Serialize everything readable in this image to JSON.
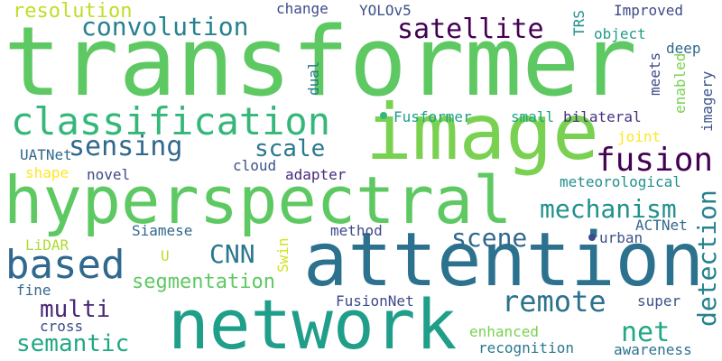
{
  "cloud": {
    "background": "#ffffff",
    "words": {
      "transformer": {
        "text": "transformer",
        "color": "#5ec962"
      },
      "image": {
        "text": "image",
        "color": "#7ad151"
      },
      "hyperspectral": {
        "text": "hyperspectral",
        "color": "#5ec962"
      },
      "attention": {
        "text": "attention",
        "color": "#2c728e"
      },
      "network": {
        "text": "network",
        "color": "#1f9e89"
      },
      "classification": {
        "text": "classification",
        "color": "#35b779"
      },
      "sensing": {
        "text": "sensing",
        "color": "#31688e"
      },
      "fusion": {
        "text": "fusion",
        "color": "#440154"
      },
      "based": {
        "text": "based",
        "color": "#31688e"
      },
      "convolution": {
        "text": "convolution",
        "color": "#26828e"
      },
      "satellite": {
        "text": "satellite",
        "color": "#440154"
      },
      "resolution": {
        "text": "resolution",
        "color": "#bddf26"
      },
      "mechanism": {
        "text": "mechanism",
        "color": "#21918c"
      },
      "remote": {
        "text": "remote",
        "color": "#2c728e"
      },
      "scale": {
        "text": "scale",
        "color": "#2a788e"
      },
      "scene": {
        "text": "scene",
        "color": "#31688e"
      },
      "detection": {
        "text": "detection",
        "color": "#26828e"
      },
      "CNN": {
        "text": "CNN",
        "color": "#2a788e"
      },
      "segmentation": {
        "text": "segmentation",
        "color": "#5ec962"
      },
      "multi": {
        "text": "multi",
        "color": "#482878"
      },
      "semantic": {
        "text": "semantic",
        "color": "#22a884"
      },
      "net": {
        "text": "net",
        "color": "#22a884"
      },
      "change": {
        "text": "change",
        "color": "#3e4a89"
      },
      "YOLOv5": {
        "text": "YOLOv5",
        "color": "#3b528b"
      },
      "TRS": {
        "text": "TRS",
        "color": "#21918c"
      },
      "Improved": {
        "text": "Improved",
        "color": "#3e4a89"
      },
      "object": {
        "text": "object",
        "color": "#1f9e89"
      },
      "deep": {
        "text": "deep",
        "color": "#31688e"
      },
      "meets": {
        "text": "meets",
        "color": "#3e4a89"
      },
      "imagery": {
        "text": "imagery",
        "color": "#3b528b"
      },
      "enabled": {
        "text": "enabled",
        "color": "#7ad151"
      },
      "dual": {
        "text": "dual",
        "color": "#2a788e"
      },
      "Fusformer": {
        "text": "Fusformer",
        "color": "#1f9e89"
      },
      "small": {
        "text": "small",
        "color": "#20a486"
      },
      "bilateral": {
        "text": "bilateral",
        "color": "#46327e"
      },
      "joint": {
        "text": "joint",
        "color": "#fde725"
      },
      "UATNet": {
        "text": "UATNet",
        "color": "#31688e"
      },
      "shape": {
        "text": "shape",
        "color": "#fde725"
      },
      "novel": {
        "text": "novel",
        "color": "#3e4a89"
      },
      "cloud": {
        "text": "cloud",
        "color": "#3b528b"
      },
      "adapter": {
        "text": "adapter",
        "color": "#482878"
      },
      "meteorological": {
        "text": "meteorological",
        "color": "#21918c"
      },
      "ACTNet": {
        "text": "ACTNet",
        "color": "#31688e"
      },
      "Siamese": {
        "text": "Siamese",
        "color": "#31688e"
      },
      "method": {
        "text": "method",
        "color": "#3e4a89"
      },
      "urban": {
        "text": "urban",
        "color": "#3b528b"
      },
      "LiDAR": {
        "text": "LiDAR",
        "color": "#addc30"
      },
      "U": {
        "text": "U",
        "color": "#bddf26"
      },
      "Swin": {
        "text": "Swin",
        "color": "#d2e21b"
      },
      "fine": {
        "text": "fine",
        "color": "#31688e"
      },
      "FusionNet": {
        "text": "FusionNet",
        "color": "#3e4a89"
      },
      "super": {
        "text": "super",
        "color": "#3b528b"
      },
      "cross": {
        "text": "cross",
        "color": "#3e4a89"
      },
      "enhanced": {
        "text": "enhanced",
        "color": "#7ad151"
      },
      "recognition": {
        "text": "recognition",
        "color": "#2a788e"
      },
      "awareness": {
        "text": "awareness",
        "color": "#2c728e"
      }
    },
    "bullets": {
      "fusformer_bullet": {
        "color": "#35b779"
      },
      "urban_bullet": {
        "color": "#3e4a89"
      }
    }
  }
}
